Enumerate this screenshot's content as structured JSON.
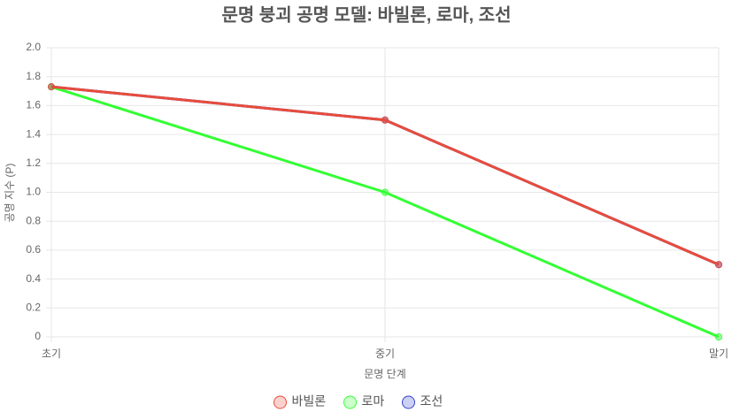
{
  "chart_data": {
    "type": "line",
    "title": "문명 붕괴 공명 모델: 바빌론, 로마, 조선",
    "x_label": "문명 단계",
    "y_label": "공명 지수 (P)",
    "categories": [
      "초기",
      "중기",
      "말기"
    ],
    "series": [
      {
        "name": "바빌론",
        "color": "#e74c3c",
        "values": [
          1.73,
          1.5,
          0.5
        ]
      },
      {
        "name": "로마",
        "color": "#33ff33",
        "values": [
          1.73,
          1.0,
          0
        ]
      },
      {
        "name": "조선",
        "color": "#3344cc",
        "values": [
          1.73,
          1.5,
          0.5
        ]
      }
    ],
    "ylim": [
      0,
      2
    ],
    "yticks": [
      0,
      0.2,
      0.4,
      0.6,
      0.8,
      {
        "value": 1,
        "label": "1.0"
      },
      1.2,
      1.4,
      1.6,
      1.8,
      {
        "value": 2,
        "label": "2.0"
      }
    ],
    "grid": true,
    "legend": "bottom"
  }
}
